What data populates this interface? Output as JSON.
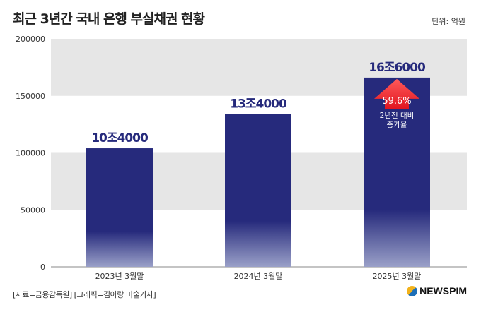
{
  "title": "최근 3년간 국내 은행 부실채권 현황",
  "unit": "단위: 억원",
  "source": "[자료=금융감독원] [그래픽=김아랑 미술기자]",
  "logo": "NEWSPIM",
  "colors": {
    "bar_top": "#262a7c",
    "bar_bottom": "#9aa0c8",
    "band": "#e6e6e6",
    "arrow": "#e0141e",
    "label": "#262a7c"
  },
  "chart_data": {
    "type": "bar",
    "title": "최근 3년간 국내 은행 부실채권 현황",
    "xlabel": "",
    "ylabel": "",
    "categories": [
      "2023년 3월말",
      "2024년 3월말",
      "2025년 3월말"
    ],
    "values": [
      104000,
      134000,
      166000
    ],
    "data_labels": [
      "10조4000",
      "13조4000",
      "16조6000"
    ],
    "ylim": [
      0,
      200000
    ],
    "yticks": [
      0,
      50000,
      100000,
      150000,
      200000
    ],
    "annotation": {
      "value": "59.6%",
      "text_line1": "2년전 대비",
      "text_line2": "증가율"
    }
  }
}
